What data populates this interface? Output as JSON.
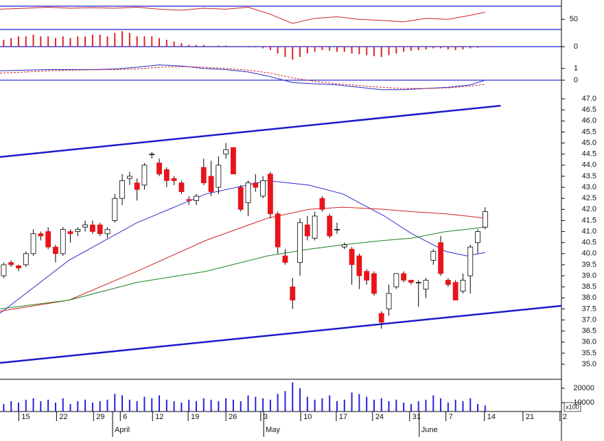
{
  "chart_data": [
    {
      "type": "line",
      "xlim": [
        -0.5,
        75.3
      ],
      "ylim": [
        30,
        76
      ],
      "yticks": [
        50
      ],
      "series": [
        {
          "color": "#cc2222",
          "x": [
            -0.5,
            3,
            6,
            9,
            12,
            15,
            18,
            21,
            24,
            27,
            30,
            33,
            36,
            39,
            42,
            45,
            48,
            51,
            54,
            57,
            60,
            63,
            65
          ],
          "values": [
            70,
            72,
            74,
            72,
            73,
            72,
            74,
            70,
            68,
            72,
            70,
            74,
            60,
            42,
            52,
            55,
            50,
            48,
            45,
            52,
            50,
            58,
            64
          ]
        }
      ]
    },
    {
      "type": "bar",
      "xlim": [
        -0.5,
        75.3
      ],
      "ylim": [
        -0.5,
        0.5
      ],
      "yticks": [
        0
      ],
      "color": "#dd2222",
      "values": [
        0.2,
        0.25,
        0.3,
        0.3,
        0.35,
        0.3,
        0.3,
        0.25,
        0.3,
        0.25,
        0.3,
        0.3,
        0.35,
        0.35,
        0.3,
        0.4,
        0.45,
        0.4,
        0.3,
        0.3,
        0.3,
        0.25,
        0.2,
        0.15,
        0.1,
        0.05,
        0.05,
        0.05,
        0.02,
        0.03,
        0.03,
        0.02,
        0,
        -0.02,
        -0.02,
        -0.05,
        -0.1,
        -0.2,
        -0.3,
        -0.38,
        -0.3,
        -0.2,
        -0.15,
        -0.1,
        -0.12,
        -0.15,
        -0.15,
        -0.2,
        -0.22,
        -0.25,
        -0.28,
        -0.3,
        -0.25,
        -0.2,
        -0.15,
        -0.12,
        -0.1,
        -0.08,
        -0.05,
        -0.05,
        -0.08,
        -0.1,
        -0.08,
        -0.05,
        -0.03,
        -0.02
      ]
    },
    {
      "type": "line",
      "xlim": [
        -0.5,
        75.3
      ],
      "ylim": [
        -1.4,
        1.8
      ],
      "yticks": [
        0,
        1
      ],
      "series": [
        {
          "color": "#2222cc",
          "x": [
            -0.5,
            3,
            6,
            9,
            12,
            15,
            18,
            21,
            24,
            27,
            30,
            33,
            36,
            39,
            42,
            45,
            48,
            51,
            54,
            57,
            60,
            63,
            65
          ],
          "values": [
            0.8,
            0.85,
            0.9,
            0.9,
            0.9,
            0.95,
            1.1,
            1.3,
            1.2,
            1.0,
            0.9,
            0.7,
            0.3,
            -0.2,
            -0.3,
            -0.4,
            -0.6,
            -0.8,
            -0.8,
            -0.7,
            -0.6,
            -0.4,
            0
          ]
        },
        {
          "color": "#cc2222",
          "dashed": true,
          "x": [
            -0.5,
            3,
            6,
            9,
            12,
            15,
            18,
            21,
            24,
            27,
            30,
            33,
            36,
            39,
            42,
            45,
            48,
            51,
            54,
            57,
            60,
            63,
            65
          ],
          "values": [
            0.6,
            0.7,
            0.8,
            0.85,
            0.88,
            0.9,
            0.95,
            1.1,
            1.15,
            1.1,
            1.0,
            0.85,
            0.6,
            0.2,
            -0.1,
            -0.3,
            -0.45,
            -0.6,
            -0.7,
            -0.7,
            -0.65,
            -0.5,
            -0.35
          ]
        }
      ]
    },
    {
      "type": "candlestick",
      "xlim": [
        -0.5,
        75.3
      ],
      "ylim": [
        34.32,
        47.84
      ],
      "up_color": "#ffffff",
      "down_color": "#e8141a",
      "yticks": [
        {
          "value": 47,
          "label": "47.0"
        },
        {
          "value": 46.5,
          "label": "46.5"
        },
        {
          "value": 46,
          "label": "46.0"
        },
        {
          "value": 45.5,
          "label": "45.5"
        },
        {
          "value": 45,
          "label": "45.0"
        },
        {
          "value": 44.5,
          "label": "44.5"
        },
        {
          "value": 44,
          "label": "44.0"
        },
        {
          "value": 43.5,
          "label": "43.5"
        },
        {
          "value": 43,
          "label": "43.0"
        },
        {
          "value": 42.5,
          "label": "42.5"
        },
        {
          "value": 42,
          "label": "42.0"
        },
        {
          "value": 41.5,
          "label": "41.5"
        },
        {
          "value": 41,
          "label": "41.0"
        },
        {
          "value": 40.5,
          "label": "40.5"
        },
        {
          "value": 40,
          "label": "40.0"
        },
        {
          "value": 39.5,
          "label": "39.5"
        },
        {
          "value": 39,
          "label": "39.0"
        },
        {
          "value": 38.5,
          "label": "38.5"
        },
        {
          "value": 38,
          "label": "38.0"
        },
        {
          "value": 37.5,
          "label": "37.5"
        },
        {
          "value": 37,
          "label": "37.0"
        },
        {
          "value": 36.5,
          "label": "36.5"
        },
        {
          "value": 36,
          "label": "36.0"
        },
        {
          "value": 35.5,
          "label": "35.5"
        },
        {
          "value": 35,
          "label": "35.0"
        }
      ],
      "open": [
        39.0,
        39.6,
        39.45,
        39.5,
        40.0,
        40.9,
        41.0,
        40.3,
        40.0,
        41.0,
        41.0,
        41.2,
        41.3,
        41.3,
        40.9,
        41.5,
        42.5,
        43.4,
        43.2,
        43.1,
        44.5,
        44.1,
        43.8,
        43.4,
        43.2,
        42.45,
        42.4,
        43.9,
        43.5,
        43.0,
        44.5,
        44.8,
        43.0,
        42.3,
        43.2,
        42.6,
        43.6,
        41.8,
        39.9,
        38.5,
        39.6,
        41.3,
        40.7,
        42.5,
        41.7,
        41.1,
        40.3,
        40.2,
        39.9,
        39.2,
        39.1,
        37.3,
        37.5,
        38.5,
        39.1,
        38.8,
        38.7,
        38.4,
        39.7,
        40.5,
        38.8,
        38.7,
        38.3,
        39.0,
        40.5,
        41.2
      ],
      "high": [
        39.6,
        39.7,
        39.5,
        40.1,
        41.1,
        41.0,
        41.2,
        40.4,
        41.2,
        41.1,
        41.2,
        41.5,
        41.5,
        41.4,
        41.2,
        42.7,
        43.6,
        43.7,
        43.4,
        44.1,
        44.6,
        44.3,
        43.9,
        43.5,
        43.3,
        42.6,
        42.7,
        44.3,
        44.2,
        44.4,
        45.0,
        44.8,
        43.1,
        43.3,
        43.6,
        43.5,
        43.7,
        41.9,
        40.2,
        38.9,
        41.6,
        41.7,
        41.9,
        42.6,
        41.8,
        41.4,
        40.5,
        40.3,
        40.0,
        39.3,
        39.2,
        37.4,
        38.6,
        39.1,
        39.2,
        38.8,
        38.8,
        38.9,
        40.2,
        40.8,
        38.9,
        38.8,
        39.1,
        40.4,
        41.1,
        42.1
      ],
      "low": [
        38.9,
        39.4,
        39.2,
        39.4,
        39.9,
        40.6,
        40.2,
        39.6,
        39.9,
        40.5,
        40.8,
        41.0,
        40.9,
        40.8,
        40.7,
        41.4,
        42.2,
        43.1,
        42.4,
        42.9,
        44.3,
        43.5,
        43.0,
        43.1,
        42.7,
        42.2,
        42.2,
        43.1,
        42.6,
        42.7,
        44.3,
        43.6,
        41.9,
        41.7,
        42.8,
        42.5,
        41.6,
        40.0,
        39.5,
        37.5,
        39.0,
        40.6,
        40.6,
        41.9,
        40.7,
        40.9,
        40.2,
        38.6,
        38.4,
        38.6,
        38.1,
        36.6,
        37.2,
        38.4,
        38.7,
        38.6,
        37.6,
        38.0,
        39.5,
        39.0,
        38.5,
        37.9,
        38.2,
        38.2,
        40.0,
        41.1
      ],
      "close": [
        39.5,
        39.5,
        39.35,
        40.0,
        40.9,
        40.8,
        40.3,
        40.0,
        41.1,
        40.9,
        41.1,
        41.3,
        41.0,
        40.9,
        41.1,
        42.5,
        43.3,
        43.5,
        42.9,
        44.0,
        44.5,
        43.6,
        43.3,
        43.3,
        42.8,
        42.4,
        42.6,
        43.2,
        42.8,
        44.0,
        44.7,
        43.6,
        42.0,
        43.2,
        43.0,
        43.3,
        41.8,
        40.3,
        39.6,
        37.9,
        41.4,
        40.8,
        41.7,
        42.0,
        40.8,
        41.1,
        40.4,
        39.5,
        39.0,
        38.8,
        38.2,
        36.9,
        38.2,
        39.1,
        38.8,
        38.7,
        38.7,
        38.8,
        40.1,
        39.1,
        38.6,
        37.9,
        38.8,
        40.3,
        41.0,
        41.9
      ],
      "series": [
        {
          "color": "#2a2ad0",
          "x": [
            -0.5,
            8.8,
            18,
            27.3,
            35.6,
            41.2,
            45.8,
            51.4,
            55.1,
            59.7,
            62.5,
            65
          ],
          "values": [
            37.3,
            39.7,
            41.4,
            42.7,
            43.3,
            43.1,
            42.7,
            41.7,
            40.9,
            40.1,
            39.9,
            40.05
          ]
        },
        {
          "color": "#d02020",
          "x": [
            -0.5,
            8.8,
            18,
            27.3,
            35.6,
            41.2,
            45.8,
            51.4,
            55.1,
            59.7,
            62.5,
            65
          ],
          "values": [
            37.4,
            37.9,
            39.2,
            40.6,
            41.6,
            42.0,
            42.1,
            42.0,
            41.9,
            41.8,
            41.7,
            41.6
          ]
        },
        {
          "color": "#1a801a",
          "x": [
            -0.5,
            8.8,
            18,
            27.3,
            35.6,
            41.2,
            45.8,
            51.4,
            55.1,
            59.7,
            62.5,
            65
          ],
          "values": [
            37.5,
            37.9,
            38.7,
            39.2,
            39.9,
            40.2,
            40.4,
            40.6,
            40.7,
            41.0,
            41.1,
            41.2
          ]
        }
      ],
      "trendlines": [
        {
          "color": "#1a1acc",
          "x": [
            -0.5,
            67.1
          ],
          "values": [
            44.37,
            46.69
          ]
        },
        {
          "color": "#1a1acc",
          "x": [
            -0.5,
            75.3
          ],
          "values": [
            35.06,
            37.64
          ]
        }
      ]
    },
    {
      "type": "bar",
      "xlim": [
        -0.5,
        75.3
      ],
      "ylim": [
        3800,
        26200
      ],
      "yticks": [
        20000,
        10000
      ],
      "color": "#2222dd",
      "unit_label": "x100",
      "values": [
        9000,
        11000,
        10000,
        12000,
        13000,
        11000,
        12000,
        10000,
        13000,
        9000,
        11000,
        12000,
        10000,
        11000,
        12000,
        16000,
        15000,
        12000,
        11000,
        14000,
        13000,
        15000,
        12000,
        11000,
        10000,
        12000,
        11000,
        13000,
        12000,
        11000,
        13000,
        12000,
        11000,
        15000,
        14000,
        13000,
        12000,
        16000,
        18000,
        24000,
        20000,
        14000,
        12000,
        13000,
        15000,
        11000,
        12000,
        17000,
        16000,
        14000,
        12000,
        13000,
        11000,
        12000,
        10000,
        9000,
        11000,
        12000,
        15000,
        13000,
        10000,
        12000,
        11000,
        13000,
        9000,
        8000
      ],
      "xticks": [
        {
          "value": 2.04,
          "label": "15"
        },
        {
          "value": 7.13,
          "label": "22"
        },
        {
          "value": 12.13,
          "label": "29"
        },
        {
          "value": 15.74,
          "label": "6"
        },
        {
          "value": 20.09,
          "label": "12"
        },
        {
          "value": 24.9,
          "label": "19"
        },
        {
          "value": 30,
          "label": "26"
        },
        {
          "value": 34.7,
          "label": "3"
        },
        {
          "value": 40.1,
          "label": "10"
        },
        {
          "value": 44.9,
          "label": "17"
        },
        {
          "value": 49.8,
          "label": "24"
        },
        {
          "value": 54.8,
          "label": "31"
        },
        {
          "value": 59.7,
          "label": "7"
        },
        {
          "value": 64.9,
          "label": "14"
        },
        {
          "value": 70.1,
          "label": "21"
        },
        {
          "value": 75.1,
          "label": "2"
        }
      ],
      "month_ticks": [
        {
          "value": 14.7,
          "label": "April"
        },
        {
          "value": 35.1,
          "label": "May"
        },
        {
          "value": 56.1,
          "label": "June"
        }
      ]
    }
  ]
}
